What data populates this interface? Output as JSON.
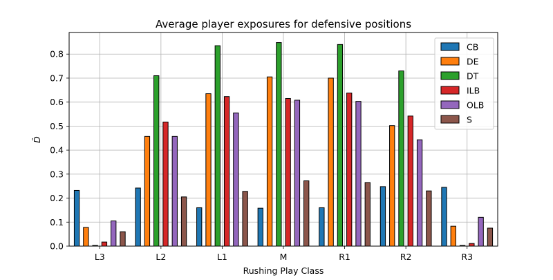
{
  "chart_data": {
    "type": "bar",
    "title": "Average player exposures for defensive positions",
    "xlabel": "Rushing Play Class",
    "ylabel": "D̂",
    "categories": [
      "L3",
      "L2",
      "L1",
      "M",
      "R1",
      "R2",
      "R3"
    ],
    "ylim": [
      0,
      0.89
    ],
    "yticks": [
      "0.0",
      "0.1",
      "0.2",
      "0.3",
      "0.4",
      "0.5",
      "0.6",
      "0.7",
      "0.8"
    ],
    "grid": true,
    "legend_position": "top-right",
    "series": [
      {
        "name": "CB",
        "color": "#1f77b4",
        "values": [
          0.232,
          0.242,
          0.16,
          0.158,
          0.16,
          0.248,
          0.245
        ]
      },
      {
        "name": "DE",
        "color": "#ff7f0e",
        "values": [
          0.078,
          0.457,
          0.635,
          0.705,
          0.7,
          0.502,
          0.083
        ]
      },
      {
        "name": "DT",
        "color": "#2ca02c",
        "values": [
          0.003,
          0.71,
          0.835,
          0.848,
          0.84,
          0.73,
          0.003
        ]
      },
      {
        "name": "ILB",
        "color": "#d62728",
        "values": [
          0.017,
          0.517,
          0.623,
          0.615,
          0.638,
          0.542,
          0.011
        ]
      },
      {
        "name": "OLB",
        "color": "#9467bd",
        "values": [
          0.105,
          0.457,
          0.555,
          0.608,
          0.603,
          0.443,
          0.12
        ]
      },
      {
        "name": "S",
        "color": "#8c564b",
        "values": [
          0.06,
          0.205,
          0.228,
          0.272,
          0.265,
          0.23,
          0.075
        ]
      }
    ]
  }
}
